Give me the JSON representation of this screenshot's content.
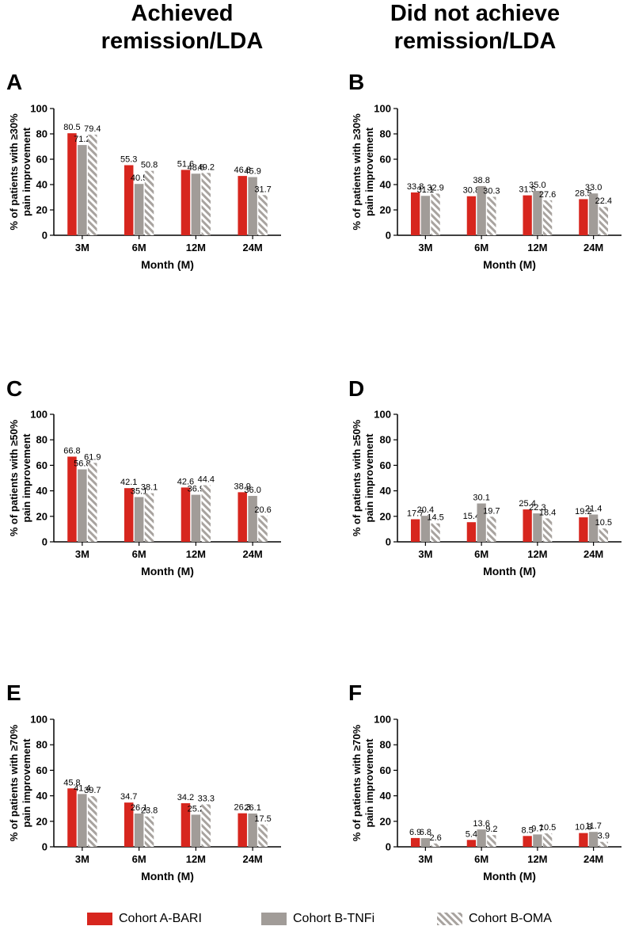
{
  "column_titles": {
    "left": "Achieved\nremission/LDA",
    "right": "Did not achieve\nremission/LDA"
  },
  "colors": {
    "bari": "#d7261e",
    "tnfi": "#a19c98",
    "oma_stripe": "#a8a39f"
  },
  "legend": [
    {
      "label": "Cohort A-BARI",
      "style": "solid-red"
    },
    {
      "label": "Cohort B-TNFi",
      "style": "solid-gray"
    },
    {
      "label": "Cohort B-OMA",
      "style": "hatched"
    }
  ],
  "chart_data": [
    {
      "panel": "A",
      "type": "bar",
      "categories": [
        "3M",
        "6M",
        "12M",
        "24M"
      ],
      "ylabel": "% of patients with ≥30%\npain improvement",
      "xlabel": "Month (M)",
      "ylim": [
        0,
        100
      ],
      "yticks": [
        0,
        20,
        40,
        60,
        80,
        100
      ],
      "series": [
        {
          "name": "Cohort A-BARI",
          "values": [
            80.5,
            55.3,
            51.6,
            46.8
          ]
        },
        {
          "name": "Cohort B-TNFi",
          "values": [
            71.2,
            40.5,
            48.6,
            45.9
          ]
        },
        {
          "name": "Cohort B-OMA",
          "values": [
            79.4,
            50.8,
            49.2,
            31.7
          ]
        }
      ]
    },
    {
      "panel": "B",
      "type": "bar",
      "categories": [
        "3M",
        "6M",
        "12M",
        "24M"
      ],
      "ylabel": "% of patients with ≥30%\npain improvement",
      "xlabel": "Month (M)",
      "ylim": [
        0,
        100
      ],
      "yticks": [
        0,
        20,
        40,
        60,
        80,
        100
      ],
      "series": [
        {
          "name": "Cohort A-BARI",
          "values": [
            33.8,
            30.8,
            31.5,
            28.5
          ]
        },
        {
          "name": "Cohort B-TNFi",
          "values": [
            31.1,
            38.8,
            35.0,
            33.0
          ]
        },
        {
          "name": "Cohort B-OMA",
          "values": [
            32.9,
            30.3,
            27.6,
            22.4
          ]
        }
      ]
    },
    {
      "panel": "C",
      "type": "bar",
      "categories": [
        "3M",
        "6M",
        "12M",
        "24M"
      ],
      "ylabel": "% of patients with ≥50%\npain improvement",
      "xlabel": "Month (M)",
      "ylim": [
        0,
        100
      ],
      "yticks": [
        0,
        20,
        40,
        60,
        80,
        100
      ],
      "series": [
        {
          "name": "Cohort A-BARI",
          "values": [
            66.8,
            42.1,
            42.6,
            38.9
          ]
        },
        {
          "name": "Cohort B-TNFi",
          "values": [
            56.8,
            35.1,
            36.9,
            36.0
          ]
        },
        {
          "name": "Cohort B-OMA",
          "values": [
            61.9,
            38.1,
            44.4,
            20.6
          ]
        }
      ]
    },
    {
      "panel": "D",
      "type": "bar",
      "categories": [
        "3M",
        "6M",
        "12M",
        "24M"
      ],
      "ylabel": "% of patients with ≥50%\npain improvement",
      "xlabel": "Month (M)",
      "ylim": [
        0,
        100
      ],
      "yticks": [
        0,
        20,
        40,
        60,
        80,
        100
      ],
      "series": [
        {
          "name": "Cohort A-BARI",
          "values": [
            17.7,
            15.4,
            25.4,
            19.2
          ]
        },
        {
          "name": "Cohort B-TNFi",
          "values": [
            20.4,
            30.1,
            22.3,
            21.4
          ]
        },
        {
          "name": "Cohort B-OMA",
          "values": [
            14.5,
            19.7,
            18.4,
            10.5
          ]
        }
      ]
    },
    {
      "panel": "E",
      "type": "bar",
      "categories": [
        "3M",
        "6M",
        "12M",
        "24M"
      ],
      "ylabel": "% of patients with ≥70%\npain improvement",
      "xlabel": "Month (M)",
      "ylim": [
        0,
        100
      ],
      "yticks": [
        0,
        20,
        40,
        60,
        80,
        100
      ],
      "series": [
        {
          "name": "Cohort A-BARI",
          "values": [
            45.8,
            34.7,
            34.2,
            26.3
          ]
        },
        {
          "name": "Cohort B-TNFi",
          "values": [
            41.4,
            26.1,
            25.2,
            26.1
          ]
        },
        {
          "name": "Cohort B-OMA",
          "values": [
            39.7,
            23.8,
            33.3,
            17.5
          ]
        }
      ]
    },
    {
      "panel": "F",
      "type": "bar",
      "categories": [
        "3M",
        "6M",
        "12M",
        "24M"
      ],
      "ylabel": "% of patients with ≥70%\npain improvement",
      "xlabel": "Month  (M)",
      "ylim": [
        0,
        100
      ],
      "yticks": [
        0,
        20,
        40,
        60,
        80,
        100
      ],
      "series": [
        {
          "name": "Cohort A-BARI",
          "values": [
            6.9,
            5.4,
            8.5,
            10.8
          ]
        },
        {
          "name": "Cohort B-TNFi",
          "values": [
            6.8,
            13.6,
            9.7,
            11.7
          ]
        },
        {
          "name": "Cohort B-OMA",
          "values": [
            2.6,
            9.2,
            10.5,
            3.9
          ]
        }
      ]
    }
  ]
}
